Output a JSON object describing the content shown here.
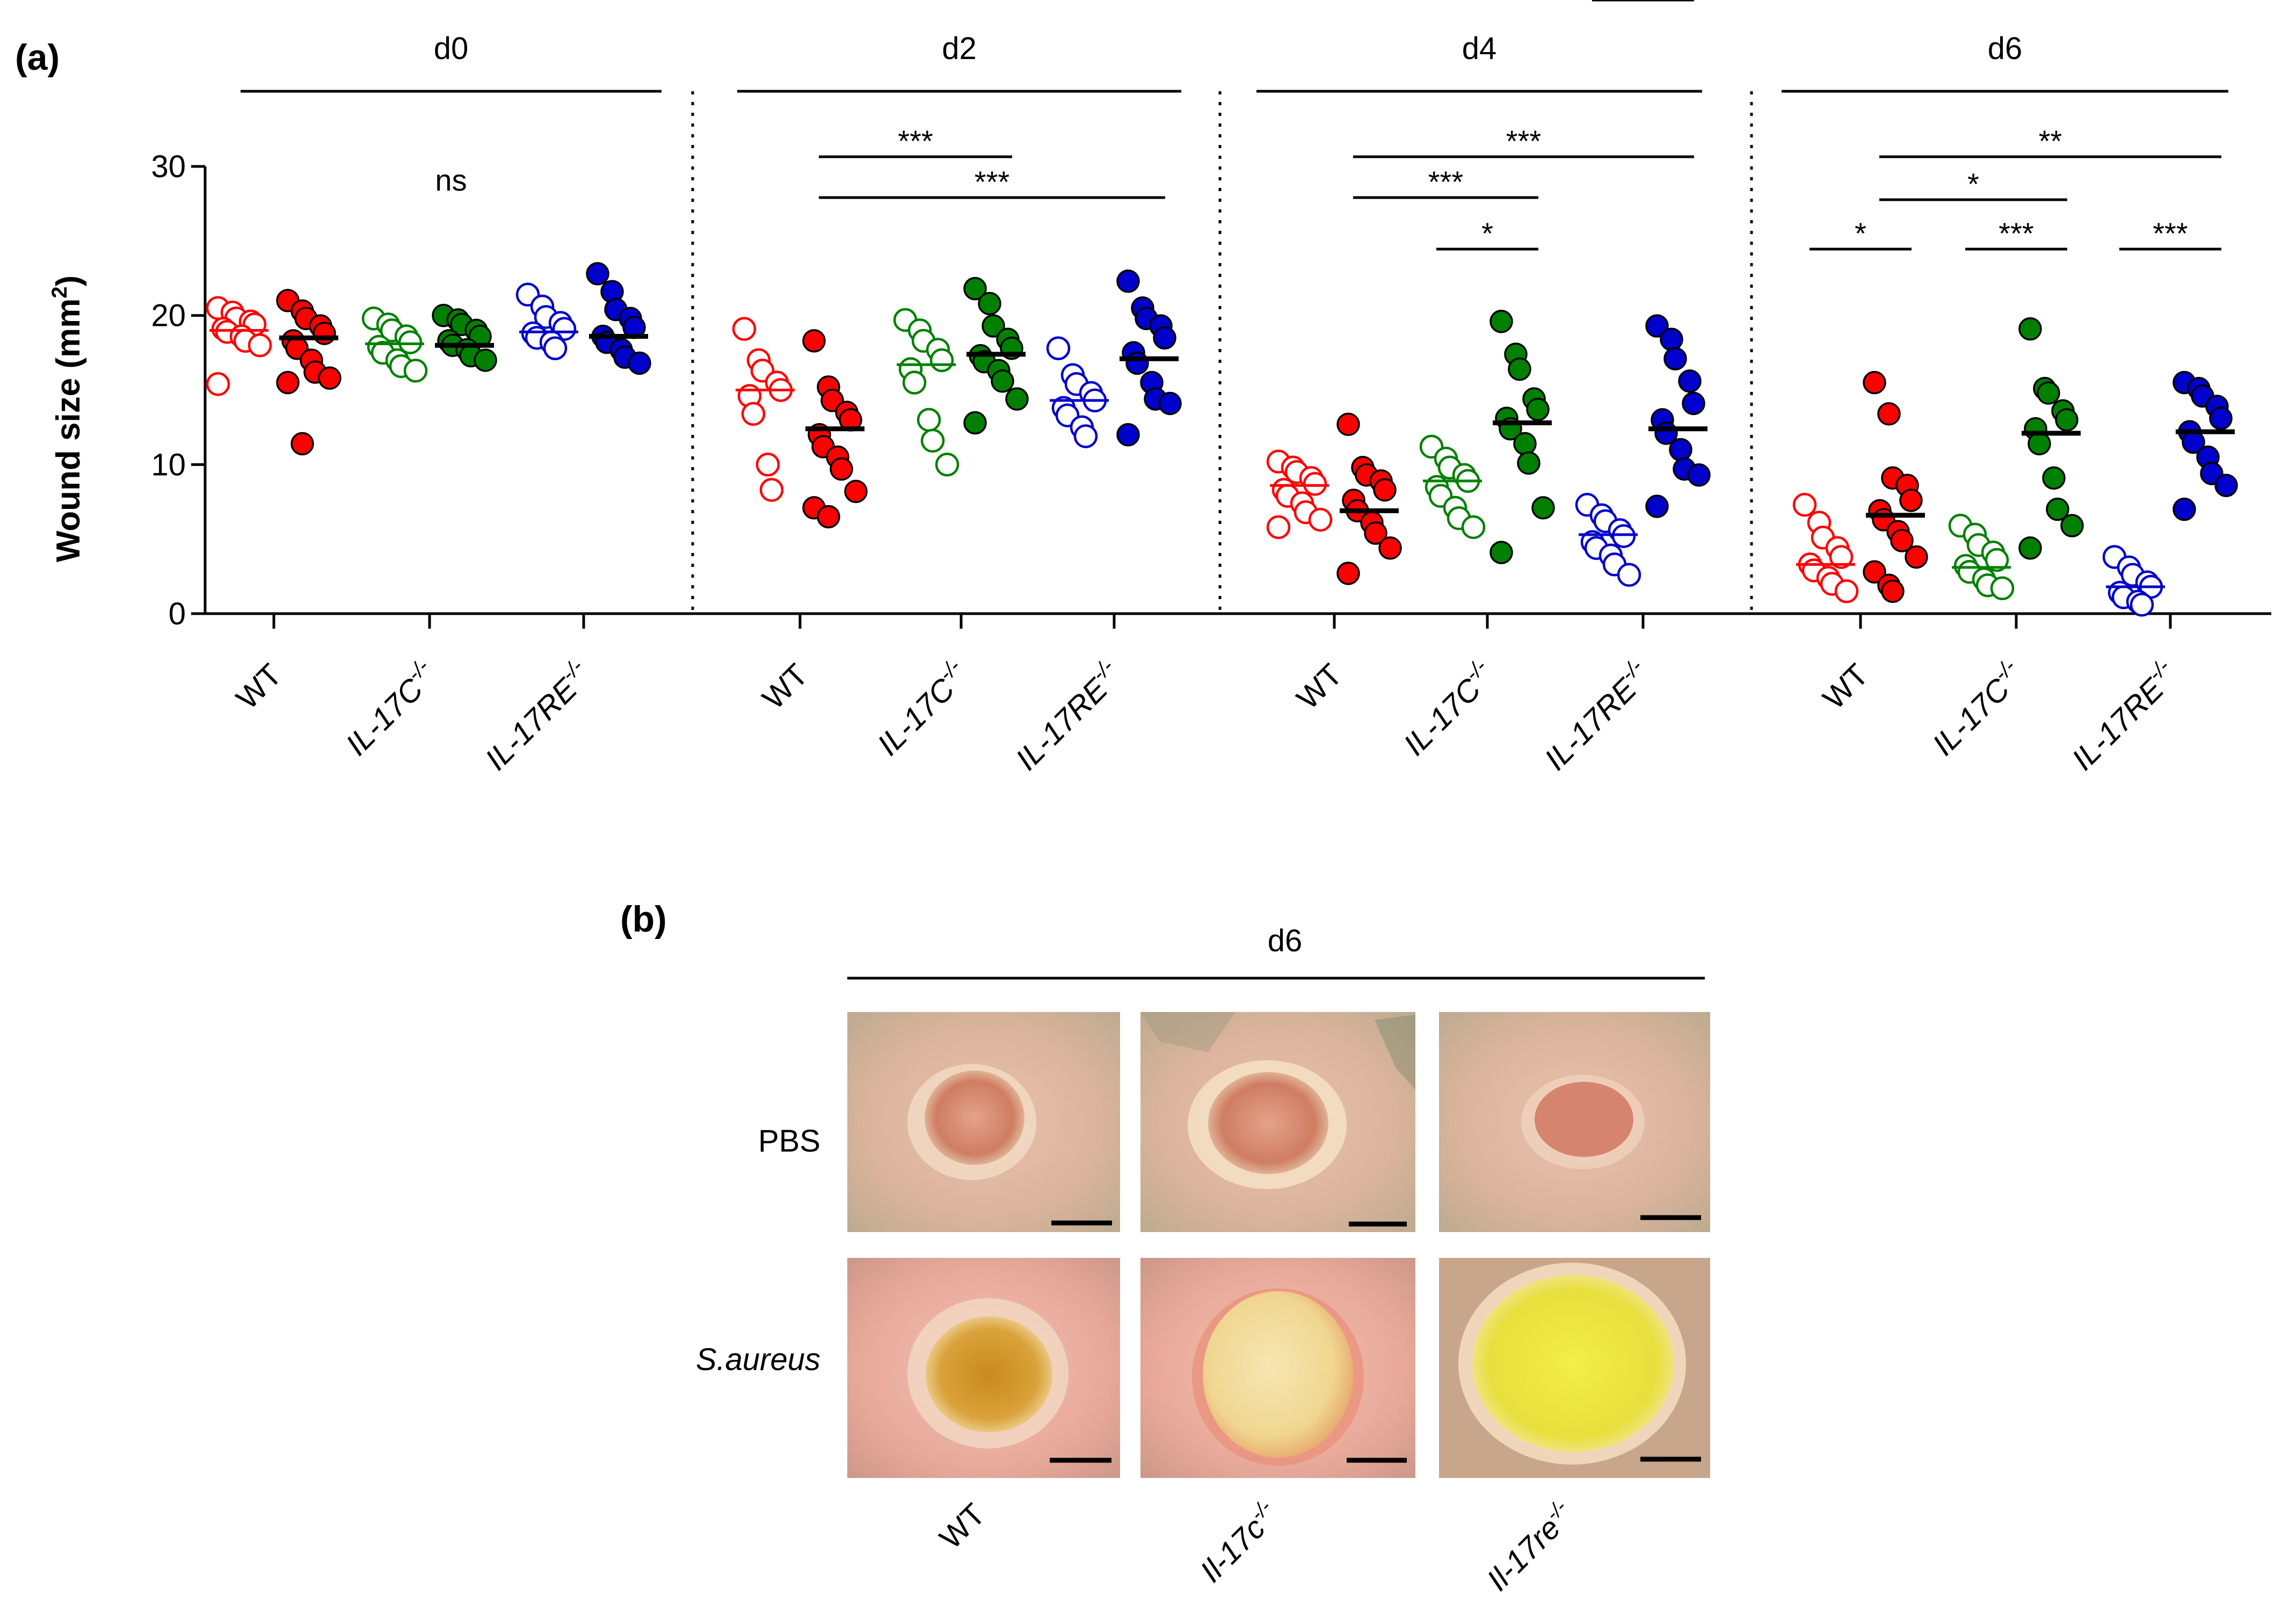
{
  "panel_a": {
    "letter": "(a)",
    "ylabel_main": "Wound size (mm",
    "ylabel_sup": "2",
    "ylabel_close": ")",
    "yticks": [
      "0",
      "10",
      "20",
      "30"
    ],
    "group_label_wt": "WT",
    "group_label_il17c_base": "IL-17C",
    "group_label_il17re_base": "IL-17RE",
    "ko_superscript": "-/-"
  },
  "panel_b": {
    "letter": "(b)",
    "day": "d6",
    "rows": [
      "PBS",
      "S.aureus"
    ],
    "columns": [
      {
        "base": "WT",
        "sup": ""
      },
      {
        "base": "Il-17c",
        "sup": "-/-"
      },
      {
        "base": "Il-17re",
        "sup": "-/-"
      }
    ]
  },
  "colors": {
    "wt": "#ff0000",
    "il17c": "#008000",
    "il17re": "#0000cc"
  },
  "chart_data": {
    "type": "scatter",
    "ylabel": "Wound size (mm2)",
    "ylim": [
      0,
      30
    ],
    "yticks": [
      0,
      10,
      20,
      30
    ],
    "grid": false,
    "legend": "none",
    "series_order": [
      "WT open",
      "WT filled",
      "IL-17C-/- open",
      "IL-17C-/- filled",
      "IL-17RE-/- open",
      "IL-17RE-/- filled"
    ],
    "panels": [
      {
        "day": "d0",
        "significance": [
          {
            "label": "ns"
          }
        ],
        "groups": [
          {
            "genotype": "WT",
            "fill": "open",
            "color": "wt",
            "mean": 19.0,
            "values": [
              20.5,
              20.2,
              19.8,
              19.6,
              19.4,
              19.1,
              18.9,
              18.6,
              18.3,
              18.0,
              15.4
            ]
          },
          {
            "genotype": "WT",
            "fill": "filled",
            "color": "wt",
            "mean": 18.5,
            "values": [
              21.0,
              20.3,
              19.8,
              19.3,
              18.8,
              18.3,
              17.8,
              17.0,
              16.2,
              15.8,
              15.5,
              11.4
            ]
          },
          {
            "genotype": "IL-17C-/-",
            "fill": "open",
            "color": "il17c",
            "mean": 18.1,
            "values": [
              19.8,
              19.4,
              19.0,
              18.6,
              18.2,
              17.9,
              17.5,
              17.0,
              16.6,
              16.3
            ]
          },
          {
            "genotype": "IL-17C-/-",
            "fill": "filled",
            "color": "il17c",
            "mean": 18.0,
            "values": [
              20.0,
              19.7,
              19.4,
              19.0,
              18.6,
              18.3,
              18.0,
              17.7,
              17.3,
              17.0
            ]
          },
          {
            "genotype": "IL-17RE-/-",
            "fill": "open",
            "color": "il17re",
            "mean": 18.9,
            "values": [
              21.4,
              20.6,
              19.9,
              19.5,
              19.1,
              18.8,
              18.5,
              18.2,
              17.8
            ]
          },
          {
            "genotype": "IL-17RE-/-",
            "fill": "filled",
            "color": "il17re",
            "mean": 18.6,
            "values": [
              22.8,
              21.6,
              20.4,
              19.8,
              19.2,
              18.6,
              18.2,
              17.7,
              17.2,
              16.8
            ]
          }
        ]
      },
      {
        "day": "d2",
        "significance": [
          {
            "label": "***",
            "from": 1,
            "to": 3
          },
          {
            "label": "***",
            "from": 1,
            "to": 5
          }
        ],
        "groups": [
          {
            "genotype": "WT",
            "fill": "open",
            "color": "wt",
            "mean": 15.0,
            "values": [
              19.1,
              17.0,
              16.3,
              15.5,
              15.0,
              14.6,
              13.4,
              10.0,
              8.3
            ]
          },
          {
            "genotype": "WT",
            "fill": "filled",
            "color": "wt",
            "mean": 12.4,
            "values": [
              18.3,
              15.2,
              14.3,
              13.5,
              13.0,
              12.0,
              11.2,
              10.5,
              9.7,
              8.2,
              7.1,
              6.5
            ]
          },
          {
            "genotype": "IL-17C-/-",
            "fill": "open",
            "color": "il17c",
            "mean": 16.7,
            "values": [
              19.7,
              19.0,
              18.3,
              17.7,
              17.0,
              16.4,
              15.5,
              13.0,
              11.6,
              10.0
            ]
          },
          {
            "genotype": "IL-17C-/-",
            "fill": "filled",
            "color": "il17c",
            "mean": 17.4,
            "values": [
              21.8,
              20.8,
              19.3,
              18.4,
              17.8,
              17.3,
              16.9,
              16.3,
              15.6,
              14.4,
              12.8
            ]
          },
          {
            "genotype": "IL-17RE-/-",
            "fill": "open",
            "color": "il17re",
            "mean": 14.3,
            "values": [
              17.8,
              16.0,
              15.4,
              14.8,
              14.3,
              13.8,
              13.3,
              12.5,
              11.9
            ]
          },
          {
            "genotype": "IL-17RE-/-",
            "fill": "filled",
            "color": "il17re",
            "mean": 17.1,
            "values": [
              22.3,
              20.5,
              19.8,
              19.3,
              18.5,
              17.5,
              16.8,
              15.5,
              14.4,
              14.1,
              12.0
            ]
          }
        ]
      },
      {
        "day": "d4",
        "significance": [
          {
            "label": "***",
            "from": 1,
            "to": 5
          },
          {
            "label": "***",
            "from": 1,
            "to": 3
          },
          {
            "label": "*",
            "from": 2,
            "to": 3
          },
          {
            "label": "***",
            "from": 4,
            "to": 5
          }
        ],
        "groups": [
          {
            "genotype": "WT",
            "fill": "open",
            "color": "wt",
            "mean": 8.6,
            "values": [
              10.2,
              9.8,
              9.5,
              9.1,
              8.7,
              8.3,
              7.9,
              7.4,
              6.8,
              6.3,
              5.8
            ]
          },
          {
            "genotype": "WT",
            "fill": "filled",
            "color": "wt",
            "mean": 6.9,
            "values": [
              12.7,
              9.8,
              9.3,
              8.9,
              8.3,
              7.6,
              6.9,
              6.1,
              5.4,
              4.4,
              2.7
            ]
          },
          {
            "genotype": "IL-17C-/-",
            "fill": "open",
            "color": "il17c",
            "mean": 8.9,
            "values": [
              11.2,
              10.4,
              9.8,
              9.3,
              8.9,
              8.5,
              7.9,
              7.1,
              6.4,
              5.8
            ]
          },
          {
            "genotype": "IL-17C-/-",
            "fill": "filled",
            "color": "il17c",
            "mean": 12.8,
            "values": [
              19.6,
              17.4,
              16.4,
              14.4,
              13.7,
              13.1,
              12.4,
              11.4,
              10.1,
              7.1,
              4.1
            ]
          },
          {
            "genotype": "IL-17RE-/-",
            "fill": "open",
            "color": "il17re",
            "mean": 5.3,
            "values": [
              7.3,
              6.6,
              6.2,
              5.6,
              5.2,
              4.8,
              4.4,
              3.9,
              3.3,
              2.6
            ]
          },
          {
            "genotype": "IL-17RE-/-",
            "fill": "filled",
            "color": "il17re",
            "mean": 12.4,
            "values": [
              19.3,
              18.4,
              17.1,
              15.6,
              14.1,
              13.0,
              12.1,
              11.0,
              9.7,
              9.3,
              7.2
            ]
          }
        ]
      },
      {
        "day": "d6",
        "significance": [
          {
            "label": "**",
            "from": 1,
            "to": 5
          },
          {
            "label": "*",
            "from": 1,
            "to": 3
          },
          {
            "label": "*",
            "from": 0,
            "to": 1
          },
          {
            "label": "***",
            "from": 2,
            "to": 3
          },
          {
            "label": "***",
            "from": 4,
            "to": 5
          }
        ],
        "groups": [
          {
            "genotype": "WT",
            "fill": "open",
            "color": "wt",
            "mean": 3.3,
            "values": [
              7.3,
              6.1,
              5.1,
              4.4,
              3.8,
              3.3,
              2.9,
              2.4,
              2.0,
              1.5
            ]
          },
          {
            "genotype": "WT",
            "fill": "filled",
            "color": "wt",
            "mean": 6.6,
            "values": [
              15.5,
              13.4,
              9.1,
              8.6,
              7.6,
              6.9,
              6.3,
              5.5,
              4.9,
              3.8,
              2.8,
              1.9,
              1.5
            ]
          },
          {
            "genotype": "IL-17C-/-",
            "fill": "open",
            "color": "il17c",
            "mean": 3.1,
            "values": [
              5.9,
              5.3,
              4.6,
              4.1,
              3.6,
              3.2,
              2.8,
              2.3,
              1.9,
              1.7
            ]
          },
          {
            "genotype": "IL-17C-/-",
            "fill": "filled",
            "color": "il17c",
            "mean": 12.1,
            "values": [
              19.1,
              15.1,
              14.8,
              13.6,
              13.0,
              12.4,
              11.4,
              9.1,
              7.0,
              5.9,
              4.4
            ]
          },
          {
            "genotype": "IL-17RE-/-",
            "fill": "open",
            "color": "il17re",
            "mean": 1.8,
            "values": [
              3.8,
              3.1,
              2.6,
              2.1,
              1.8,
              1.4,
              1.1,
              0.8,
              0.6
            ]
          },
          {
            "genotype": "IL-17RE-/-",
            "fill": "filled",
            "color": "il17re",
            "mean": 12.2,
            "values": [
              15.5,
              15.1,
              14.6,
              13.9,
              13.1,
              12.2,
              11.5,
              10.5,
              9.4,
              8.6,
              7.0
            ]
          }
        ]
      }
    ]
  }
}
